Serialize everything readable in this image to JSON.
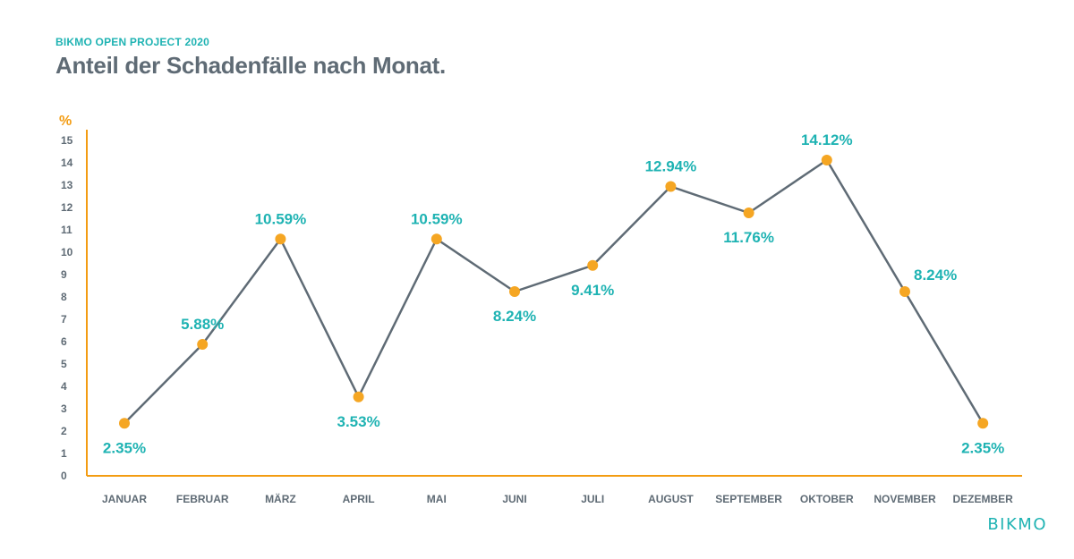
{
  "header": {
    "subtitle": "BIKMO OPEN PROJECT 2020",
    "title": "Anteil der Schadenfälle nach Monat."
  },
  "brand": "BIKMO",
  "colors": {
    "axis": "#f39c12",
    "line": "#5f6b75",
    "marker": "#f5a623",
    "label": "#1fb3b3",
    "text": "#5f6b75"
  },
  "chart_data": {
    "type": "line",
    "title": "Anteil der Schadenfälle nach Monat.",
    "ylabel": "%",
    "xlabel": "",
    "ylim": [
      0,
      15
    ],
    "yticks": [
      0,
      1,
      2,
      3,
      4,
      5,
      6,
      7,
      8,
      9,
      10,
      11,
      12,
      13,
      14,
      15
    ],
    "grid": false,
    "categories": [
      "JANUAR",
      "FEBRUAR",
      "MÄRZ",
      "APRIL",
      "MAI",
      "JUNI",
      "JULI",
      "AUGUST",
      "SEPTEMBER",
      "OKTOBER",
      "NOVEMBER",
      "DEZEMBER"
    ],
    "series": [
      {
        "values": [
          2.35,
          5.88,
          10.59,
          3.53,
          10.59,
          8.24,
          9.41,
          12.94,
          11.76,
          14.12,
          8.24,
          2.35
        ],
        "labels": [
          "2.35%",
          "5.88%",
          "10.59%",
          "3.53%",
          "10.59%",
          "8.24%",
          "9.41%",
          "12.94%",
          "11.76%",
          "14.12%",
          "8.24%",
          "2.35%"
        ],
        "label_side": [
          "below",
          "above",
          "above",
          "below",
          "above",
          "below",
          "below",
          "above",
          "below",
          "above",
          "right",
          "below"
        ]
      }
    ]
  }
}
